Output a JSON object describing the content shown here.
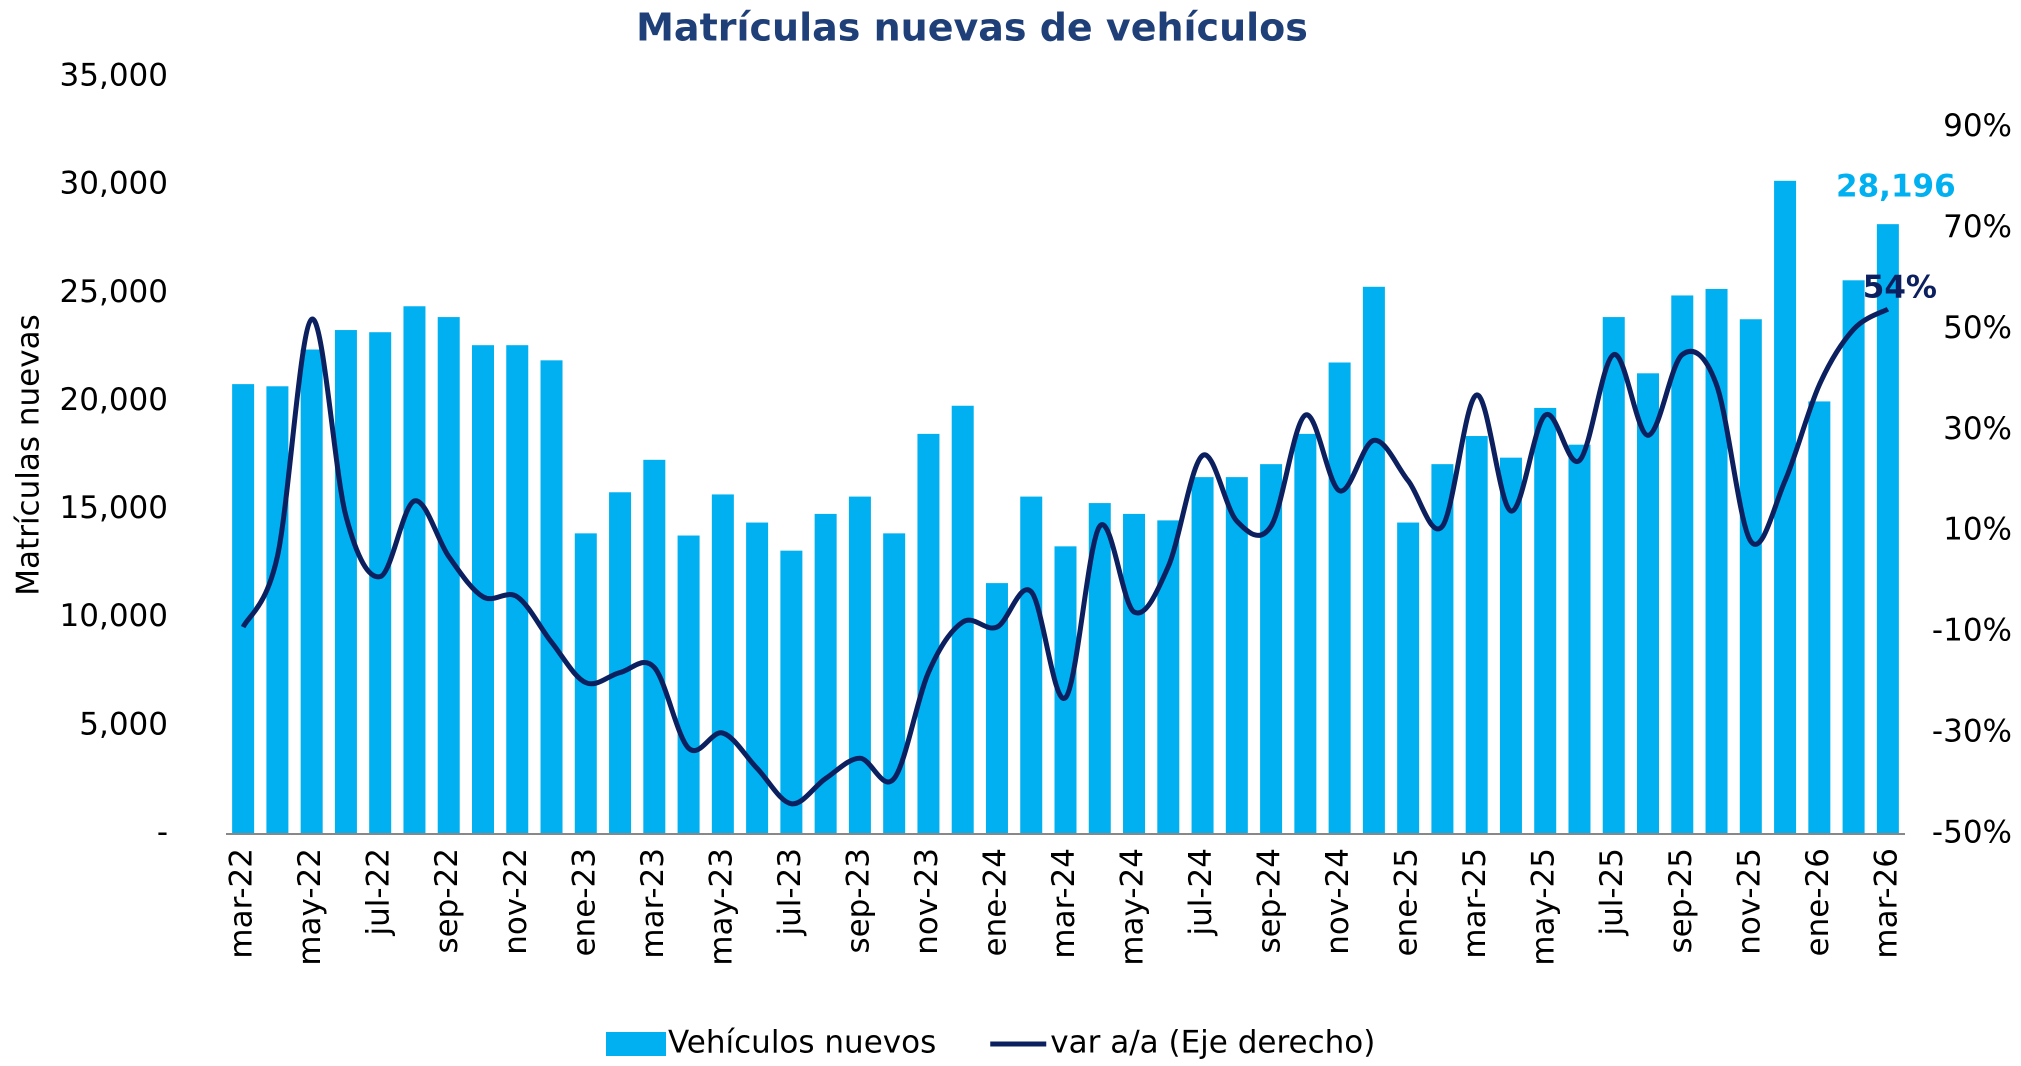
{
  "chart_data": {
    "type": "bar",
    "title": "Matrículas nuevas de vehículos",
    "y_label": "Matrículas nuevas",
    "categories": [
      "mar-22",
      null,
      "may-22",
      null,
      "jul-22",
      null,
      "sep-22",
      null,
      "nov-22",
      null,
      "ene-23",
      null,
      "mar-23",
      null,
      "may-23",
      null,
      "jul-23",
      null,
      "sep-23",
      null,
      "nov-23",
      null,
      "ene-24",
      null,
      "mar-24",
      null,
      "may-24",
      null,
      "jul-24",
      null,
      "sep-24",
      null,
      "nov-24",
      null,
      "ene-25",
      null,
      "mar-25",
      null,
      "may-25",
      null,
      "jul-25",
      null,
      "sep-25",
      null,
      "nov-25",
      null,
      "ene-26",
      null,
      "mar-26"
    ],
    "series": [
      {
        "name": "Vehículos nuevos",
        "type": "bar",
        "color": "#00b0f0",
        "values": [
          20800,
          20700,
          22400,
          23300,
          23200,
          24400,
          23900,
          22600,
          22600,
          21900,
          13900,
          15800,
          17300,
          13800,
          15700,
          14400,
          13100,
          14800,
          15600,
          13900,
          18500,
          19800,
          11600,
          15600,
          13300,
          15300,
          14800,
          14500,
          16500,
          16500,
          17100,
          18500,
          21800,
          25300,
          14400,
          17100,
          18400,
          17400,
          19700,
          18000,
          23900,
          21300,
          24900,
          25200,
          23800,
          30200,
          20000,
          25600,
          28196
        ],
        "value_labels": [
          null,
          null,
          null,
          null,
          null,
          null,
          null,
          null,
          null,
          null,
          null,
          null,
          null,
          null,
          null,
          null,
          null,
          null,
          null,
          null,
          null,
          null,
          null,
          null,
          null,
          null,
          null,
          null,
          null,
          null,
          null,
          null,
          null,
          null,
          null,
          null,
          null,
          null,
          null,
          null,
          null,
          null,
          null,
          null,
          null,
          null,
          null,
          null,
          "28,196"
        ]
      },
      {
        "name": "var a/a (Eje derecho)",
        "type": "line",
        "axis": "y2",
        "color": "#0c2060",
        "values": [
          -9,
          5,
          52,
          13,
          1,
          16,
          5,
          -3,
          -3,
          -12,
          -20,
          -18,
          -17,
          -33,
          -30,
          -37,
          -44,
          -39,
          -35,
          -39,
          -18,
          -8,
          -9,
          -2,
          -23,
          11,
          -6,
          3,
          25,
          12,
          11,
          33,
          18,
          28,
          20,
          11,
          37,
          14,
          33,
          24,
          45,
          29,
          45,
          39,
          8,
          20,
          39,
          50,
          54
        ],
        "value_labels": [
          null,
          null,
          null,
          null,
          null,
          null,
          null,
          null,
          null,
          null,
          null,
          null,
          null,
          null,
          null,
          null,
          null,
          null,
          null,
          null,
          null,
          null,
          null,
          null,
          null,
          null,
          null,
          null,
          null,
          null,
          null,
          null,
          null,
          null,
          null,
          null,
          null,
          null,
          null,
          null,
          null,
          null,
          null,
          null,
          null,
          null,
          null,
          null,
          "54%"
        ]
      }
    ],
    "ylim": [
      0,
      35000
    ],
    "yticks": [
      {
        "value": 0,
        "label": "-"
      },
      {
        "value": 5000,
        "label": "5,000"
      },
      {
        "value": 10000,
        "label": "10,000"
      },
      {
        "value": 15000,
        "label": "15,000"
      },
      {
        "value": 20000,
        "label": "20,000"
      },
      {
        "value": 25000,
        "label": "25,000"
      },
      {
        "value": 30000,
        "label": "30,000"
      },
      {
        "value": 35000,
        "label": "35,000"
      }
    ],
    "y2lim": [
      -50,
      100
    ],
    "y2ticks": [
      {
        "value": -50,
        "label": "-50%"
      },
      {
        "value": -30,
        "label": "-30%"
      },
      {
        "value": -10,
        "label": "-10%"
      },
      {
        "value": 10,
        "label": "10%"
      },
      {
        "value": 30,
        "label": "30%"
      },
      {
        "value": 50,
        "label": "50%"
      },
      {
        "value": 70,
        "label": "70%"
      },
      {
        "value": 90,
        "label": "90%"
      }
    ],
    "grid": false,
    "legend": "bottom"
  }
}
